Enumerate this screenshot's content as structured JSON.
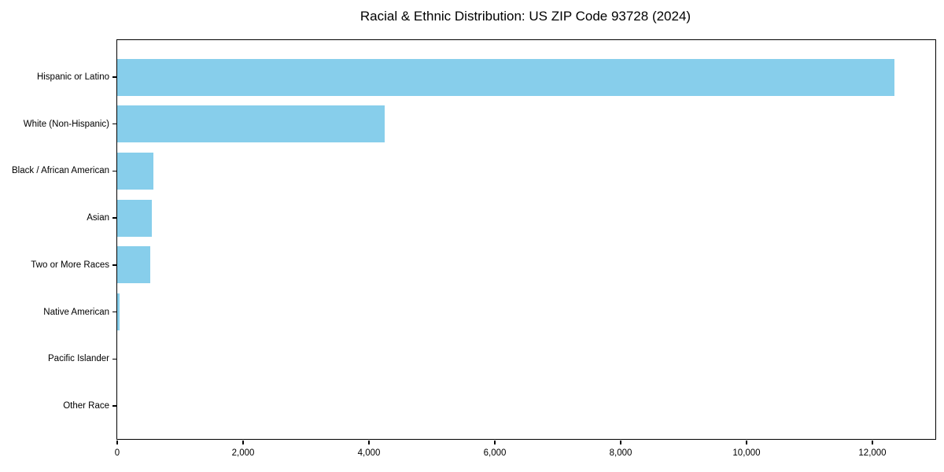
{
  "chart_data": {
    "type": "bar",
    "orientation": "horizontal",
    "title": "Racial & Ethnic Distribution: US ZIP Code 93728 (2024)",
    "xlabel": "",
    "ylabel": "",
    "categories": [
      "Hispanic or Latino",
      "White (Non-Hispanic)",
      "Black / African American",
      "Asian",
      "Two or More Races",
      "Native American",
      "Pacific Islander",
      "Other Race"
    ],
    "values": [
      12350,
      4250,
      570,
      555,
      520,
      35,
      0,
      0
    ],
    "xlim": [
      0,
      13000
    ],
    "x_ticks": [
      0,
      2000,
      4000,
      6000,
      8000,
      10000,
      12000
    ],
    "x_tick_labels": [
      "0",
      "2,000",
      "4,000",
      "6,000",
      "8,000",
      "10,000",
      "12,000"
    ],
    "bar_color": "#87CEEB",
    "frame_color": "#000000",
    "background_color": "#ffffff",
    "grid": false,
    "legend": null
  }
}
